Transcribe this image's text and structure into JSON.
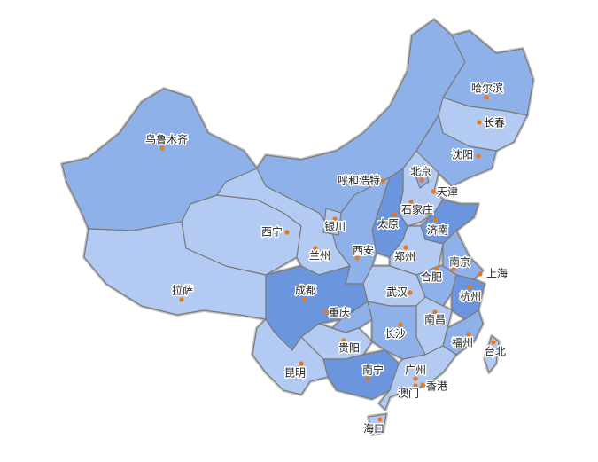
{
  "palette": {
    "light": "#b3cbf2",
    "medium": "#8fb1ea",
    "dark": "#6b96dd",
    "dot": "#e8771e",
    "border": "#7a7a7a"
  },
  "provinces": [
    {
      "id": "xinjiang",
      "tier": "medium"
    },
    {
      "id": "tibet",
      "tier": "light"
    },
    {
      "id": "qinghai",
      "tier": "light"
    },
    {
      "id": "gansu",
      "tier": "light"
    },
    {
      "id": "inner-mongolia",
      "tier": "medium"
    },
    {
      "id": "heilongjiang",
      "tier": "medium"
    },
    {
      "id": "jilin",
      "tier": "light"
    },
    {
      "id": "liaoning",
      "tier": "medium"
    },
    {
      "id": "hebei",
      "tier": "light"
    },
    {
      "id": "beijing",
      "tier": "medium"
    },
    {
      "id": "shanxi",
      "tier": "dark"
    },
    {
      "id": "shaanxi",
      "tier": "medium"
    },
    {
      "id": "ningxia",
      "tier": "light"
    },
    {
      "id": "shandong",
      "tier": "dark"
    },
    {
      "id": "henan",
      "tier": "light"
    },
    {
      "id": "jiangsu",
      "tier": "medium"
    },
    {
      "id": "anhui",
      "tier": "medium"
    },
    {
      "id": "hubei",
      "tier": "light"
    },
    {
      "id": "sichuan",
      "tier": "dark"
    },
    {
      "id": "chongqing",
      "tier": "medium"
    },
    {
      "id": "zhejiang",
      "tier": "dark"
    },
    {
      "id": "jiangxi",
      "tier": "light"
    },
    {
      "id": "hunan",
      "tier": "medium"
    },
    {
      "id": "fujian",
      "tier": "medium"
    },
    {
      "id": "guizhou",
      "tier": "light"
    },
    {
      "id": "yunnan",
      "tier": "light"
    },
    {
      "id": "guangxi",
      "tier": "dark"
    },
    {
      "id": "guangdong",
      "tier": "light"
    },
    {
      "id": "hainan",
      "tier": "light"
    },
    {
      "id": "taiwan",
      "tier": "light"
    }
  ],
  "cities": [
    "哈尔滨",
    "长春",
    "沈阳",
    "乌鲁木齐",
    "呼和浩特",
    "北京",
    "天津",
    "石家庄",
    "太原",
    "济南",
    "银川",
    "西宁",
    "兰州",
    "西安",
    "郑州",
    "南京",
    "上海",
    "合肥",
    "拉萨",
    "成都",
    "武汉",
    "杭州",
    "重庆",
    "南昌",
    "长沙",
    "福州",
    "台北",
    "贵阳",
    "昆明",
    "南宁",
    "广州",
    "香港",
    "澳门",
    "海口"
  ]
}
